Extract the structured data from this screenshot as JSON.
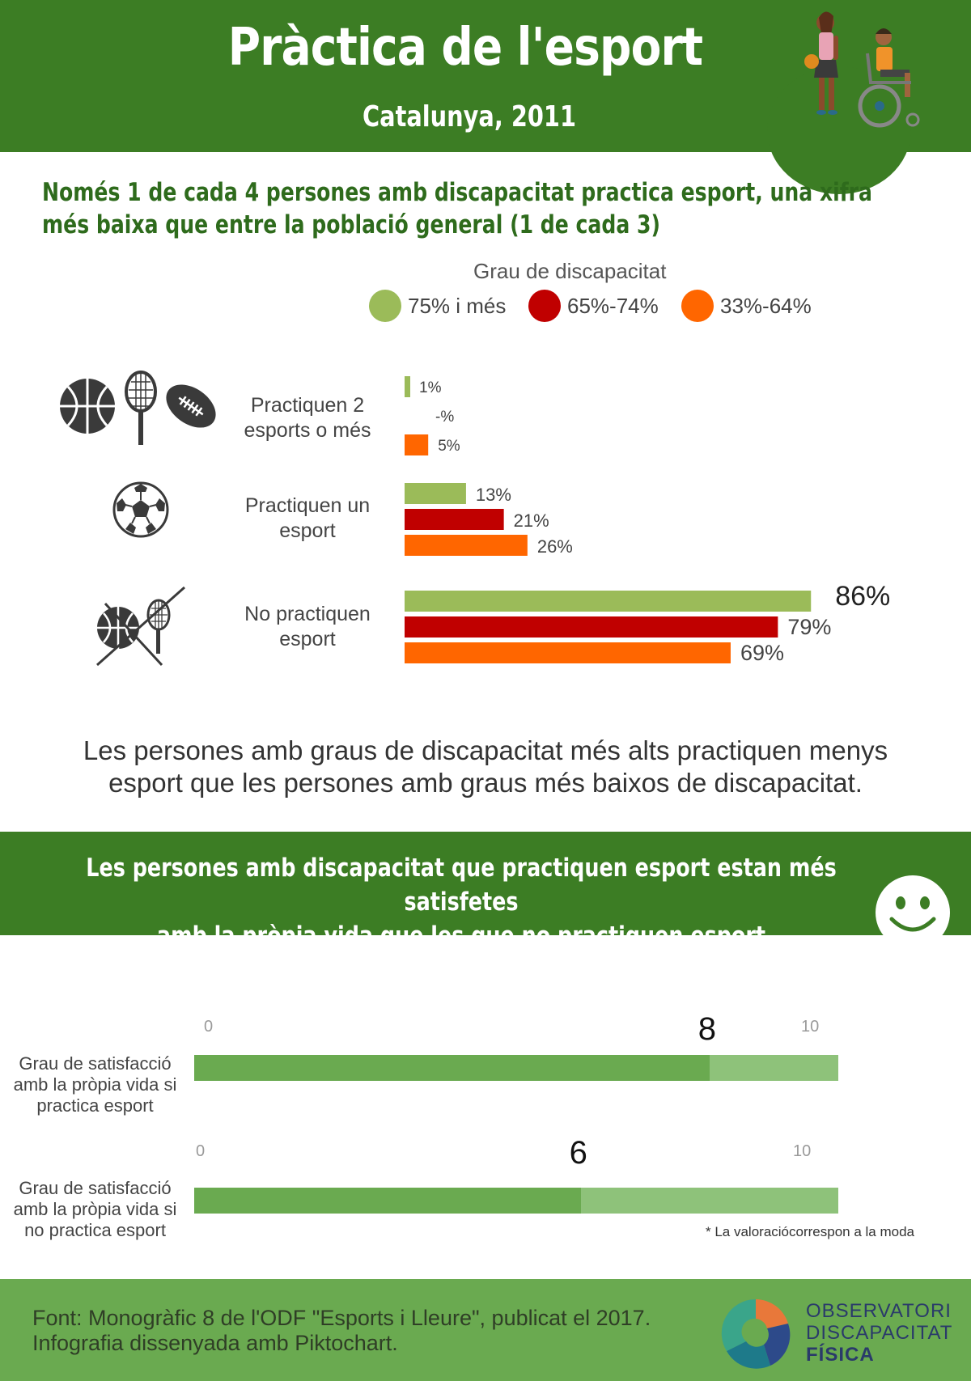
{
  "header": {
    "title": "Pràctica de l'esport",
    "subtitle": "Catalunya, 2011"
  },
  "headline": {
    "line1": "Només 1 de cada 4 persones amb discapacitat practica esport, una xifra",
    "line2": "més baixa que entre la població general (1 de cada 3)"
  },
  "chart_data": [
    {
      "type": "bar",
      "orientation": "horizontal",
      "legend_title": "Grau de discapacitat",
      "categories": [
        "Practiquen 2 esports o més",
        "Practiquen un esport",
        "No practiquen esport"
      ],
      "series": [
        {
          "name": "75% i més",
          "color": "#9bbb59",
          "values": [
            1,
            13,
            86
          ],
          "labels": [
            "1%",
            "13%",
            "86%"
          ]
        },
        {
          "name": "65%-74%",
          "color": "#c00000",
          "values": [
            null,
            21,
            79
          ],
          "labels": [
            "-%",
            "21%",
            "79%"
          ]
        },
        {
          "name": "33%-64%",
          "color": "#ff6600",
          "values": [
            5,
            26,
            69
          ],
          "labels": [
            "5%",
            "26%",
            "69%"
          ]
        }
      ],
      "xlim": [
        0,
        100
      ]
    },
    {
      "type": "bar",
      "orientation": "horizontal",
      "categories": [
        "Grau de satisfacció amb la pròpia vida si practica esport",
        "Grau de satisfacció amb la pròpia vida si no practica esport"
      ],
      "values": [
        8,
        6
      ],
      "xlim": [
        0,
        10
      ],
      "tick_labels": [
        "0",
        "10"
      ],
      "colors": {
        "fill": "#6aaa50",
        "track": "#8ec27a"
      }
    }
  ],
  "categories": {
    "two_plus": {
      "line1": "Practiquen 2",
      "line2": "esports o més"
    },
    "one": {
      "line1": "Practiquen un",
      "line2": "esport"
    },
    "none": {
      "line1": "No practiquen",
      "line2": "esport"
    }
  },
  "note": {
    "line1": "Les persones amb graus de discapacitat més alts practiquen menys",
    "line2": "esport que les persones amb graus més baixos de discapacitat."
  },
  "satisfaction": {
    "banner_line1": "Les persones amb discapacitat que practiquen esport estan més satisfetes",
    "banner_line2": "amb la pròpia vida que les que no practiquen esport",
    "rows": [
      {
        "line1": "Grau de satisfacció",
        "line2": "amb la pròpia vida si",
        "line3": "practica esport",
        "value_label": "8"
      },
      {
        "line1": "Grau de satisfacció",
        "line2": "amb la pròpia vida si",
        "line3": "no practica esport",
        "value_label": "6"
      }
    ],
    "axis_min": "0",
    "axis_max": "10",
    "footnote": "* La valoraciócorrespon a la moda"
  },
  "footer": {
    "line1": "Font: Monogràfic 8 de l'ODF \"Esports i Lleure\", publicat el 2017.",
    "line2": "Infografia dissenyada amb Piktochart.",
    "logo_line1": "OBSERVATORI",
    "logo_line2": "DISCAPACITAT",
    "logo_line3": "FÍSICA"
  },
  "icons": [
    "basketball-icon",
    "tennis-racket-icon",
    "american-football-icon",
    "soccer-ball-icon",
    "no-sport-icon",
    "smiley-icon",
    "people-icon",
    "logo-icon"
  ]
}
